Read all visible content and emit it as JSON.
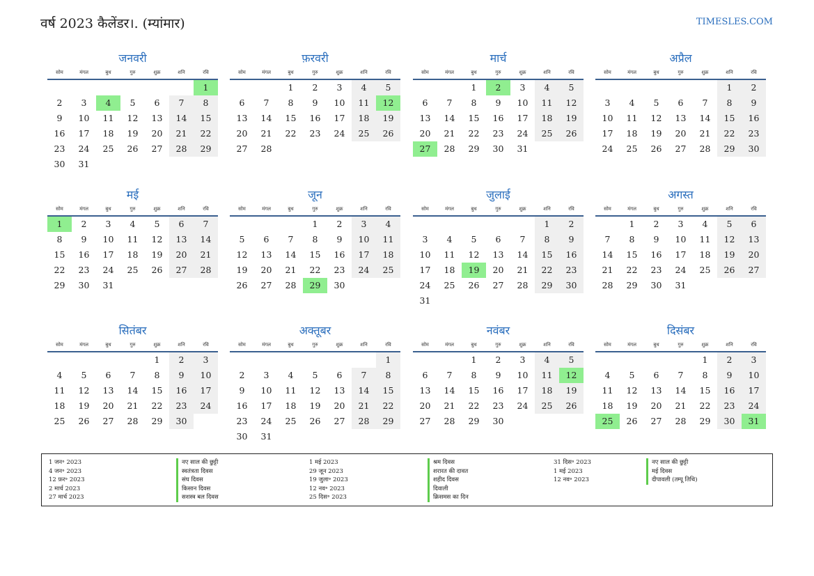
{
  "header": {
    "title": "वर्ष 2023 कैलेंडर।. (म्यांमार)",
    "site": "TIMESLES.COM"
  },
  "weekday_labels": [
    "सोम",
    "मंगल",
    "बुध",
    "गुरु",
    "शुक्र",
    "शनि",
    "रवि"
  ],
  "months": [
    {
      "name": "जनवरी",
      "offset": 6,
      "days": 31,
      "highlights": [
        1,
        4
      ]
    },
    {
      "name": "फ़रवरी",
      "offset": 2,
      "days": 28,
      "highlights": [
        12
      ]
    },
    {
      "name": "मार्च",
      "offset": 2,
      "days": 31,
      "highlights": [
        2,
        27
      ]
    },
    {
      "name": "अप्रैल",
      "offset": 5,
      "days": 30,
      "highlights": []
    },
    {
      "name": "मई",
      "offset": 0,
      "days": 31,
      "highlights": [
        1
      ]
    },
    {
      "name": "जून",
      "offset": 3,
      "days": 30,
      "highlights": [
        29
      ]
    },
    {
      "name": "जुलाई",
      "offset": 5,
      "days": 31,
      "highlights": [
        19
      ]
    },
    {
      "name": "अगस्त",
      "offset": 1,
      "days": 31,
      "highlights": []
    },
    {
      "name": "सितंबर",
      "offset": 4,
      "days": 30,
      "highlights": []
    },
    {
      "name": "अक्तूबर",
      "offset": 6,
      "days": 31,
      "highlights": []
    },
    {
      "name": "नवंबर",
      "offset": 2,
      "days": 30,
      "highlights": [
        12
      ]
    },
    {
      "name": "दिसंबर",
      "offset": 4,
      "days": 31,
      "highlights": [
        25,
        31
      ]
    }
  ],
  "legend": [
    {
      "dates": [
        "1 जन॰ 2023",
        "4 जन॰ 2023",
        "12 फ़र॰ 2023",
        "2 मार्च 2023",
        "27 मार्च 2023"
      ],
      "names": [
        "नए साल की छुट्टी",
        "स्वतंत्रता दिवस",
        "संघ दिवस",
        "किसान दिवस",
        "सशस्त्र बल दिवस"
      ]
    },
    {
      "dates": [
        "1 मई 2023",
        "29 जून 2023",
        "19 जुला॰ 2023",
        "12 नव॰ 2023",
        "25 दिस॰ 2023"
      ],
      "names": [
        "श्रम दिवस",
        "शरारत की दावत",
        "शहीद दिवस",
        "दिवाली",
        "क्रिसमस का दिन"
      ]
    },
    {
      "dates": [
        "31 दिस॰ 2023",
        "1 मई 2023",
        "12 नव॰ 2023"
      ],
      "names": [
        "नए साल की छुट्टी",
        "मई दिवस",
        "दीपावली (तम्पू तिथि)"
      ]
    }
  ]
}
